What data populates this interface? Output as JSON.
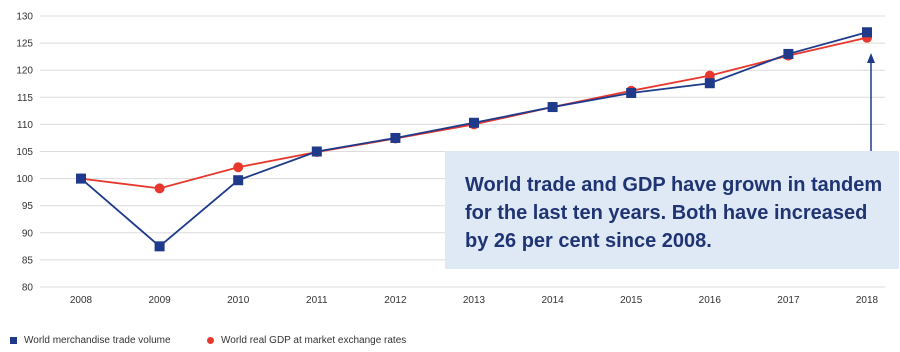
{
  "chart_data": {
    "type": "line",
    "title": "",
    "xlabel": "",
    "ylabel": "",
    "x": [
      "2008",
      "2009",
      "2010",
      "2011",
      "2012",
      "2013",
      "2014",
      "2015",
      "2016",
      "2017",
      "2018"
    ],
    "ylim": [
      80,
      130
    ],
    "yticks": [
      80,
      85,
      90,
      95,
      100,
      105,
      110,
      115,
      120,
      125,
      130
    ],
    "grid": true,
    "legend_position": "bottom-left",
    "series": [
      {
        "name": "World merchandise trade volume",
        "color": "#1f3a8a",
        "marker": "square",
        "values": [
          100,
          87.5,
          99.7,
          105,
          107.5,
          110.3,
          113.2,
          115.8,
          117.6,
          123,
          127
        ]
      },
      {
        "name": "World real GDP at market exchange rates",
        "color": "#e8372d",
        "marker": "circle",
        "values": [
          100,
          98.2,
          102.1,
          104.9,
          107.4,
          110,
          113.2,
          116.2,
          119,
          122.7,
          126
        ]
      }
    ],
    "annotation": {
      "text": "World trade and GDP have grown in tandem for the last ten years. Both have increased by 26 per cent since 2008.",
      "arrow_to": "2018"
    }
  }
}
